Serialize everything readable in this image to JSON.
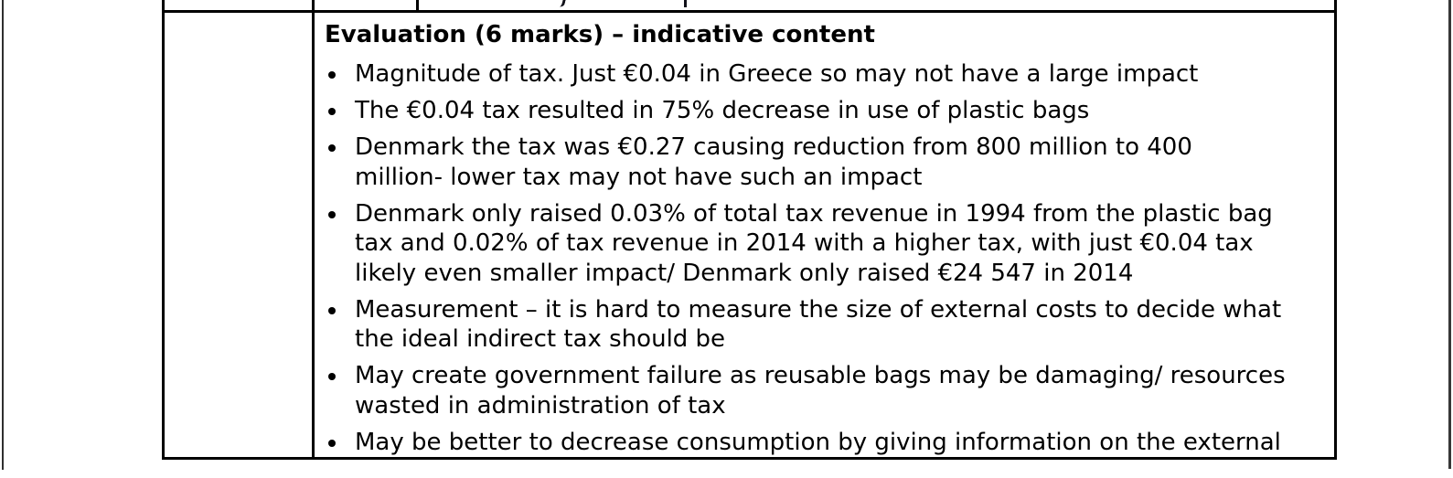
{
  "document": {
    "heading": "Evaluation (6 marks) – indicative content",
    "bullets": [
      {
        "lines": [
          "Magnitude of tax. Just €0.04 in Greece so may not have a large impact"
        ]
      },
      {
        "lines": [
          "The €0.04 tax resulted in 75% decrease in use of plastic bags"
        ]
      },
      {
        "lines": [
          "Denmark the tax was €0.27 causing reduction from 800 million to 400",
          "million- lower tax may not have such an impact"
        ]
      },
      {
        "lines": [
          "Denmark only raised 0.03% of total tax revenue in 1994 from the plastic bag",
          "tax and 0.02% of tax revenue in 2014 with a higher tax, with just €0.04 tax",
          "likely even smaller impact/ Denmark only raised €24 547 in 2014"
        ]
      },
      {
        "lines": [
          "Measurement – it is hard to measure the size of external costs to decide what",
          "the ideal indirect tax should be"
        ]
      },
      {
        "lines": [
          "May create government failure as reusable bags may be damaging/ resources",
          "wasted in administration of tax"
        ]
      },
      {
        "lines": [
          "May be better to decrease consumption by giving information on the external"
        ]
      }
    ],
    "previous_row_fragments": [
      "comma-descender",
      "stem-descender"
    ],
    "colors": {
      "background": "#ffffff",
      "text": "#000000",
      "table_border": "#000000",
      "page_edge_line": "#333333"
    }
  }
}
